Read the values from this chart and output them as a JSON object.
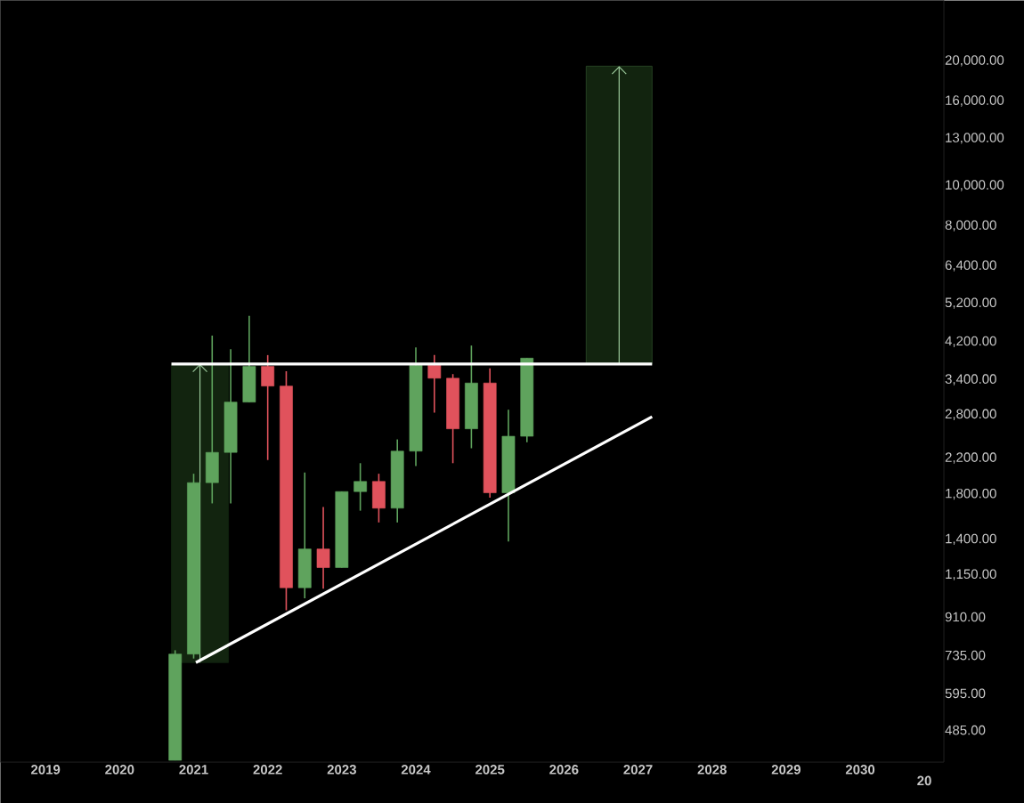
{
  "chart_data": {
    "type": "candlestick",
    "x": [
      2020.75,
      2021,
      2021.25,
      2021.5,
      2021.75,
      2022,
      2022.25,
      2022.5,
      2022.75,
      2023,
      2023.25,
      2023.5,
      2023.75,
      2024,
      2024.25,
      2024.5,
      2024.75,
      2025,
      2025.25,
      2025.5
    ],
    "ohlc": [
      [
        410,
        756,
        410,
        740
      ],
      [
        740,
        2016,
        722,
        1919
      ],
      [
        1919,
        4345,
        1710,
        2270
      ],
      [
        2270,
        4027,
        1710,
        3002
      ],
      [
        3002,
        4847,
        3002,
        3661
      ],
      [
        3661,
        3899,
        2176,
        3282
      ],
      [
        3282,
        3565,
        944,
        1070
      ],
      [
        1070,
        2030,
        1009,
        1327
      ],
      [
        1327,
        1675,
        1064,
        1197
      ],
      [
        1197,
        1826,
        1197,
        1826
      ],
      [
        1826,
        2138,
        1642,
        1932
      ],
      [
        1932,
        2016,
        1538,
        1665
      ],
      [
        1665,
        2440,
        1538,
        2286
      ],
      [
        2286,
        4069,
        2104,
        3686
      ],
      [
        3686,
        3899,
        2831,
        3428
      ],
      [
        3428,
        3508,
        2138,
        2588
      ],
      [
        2588,
        4111,
        2323,
        3338
      ],
      [
        3338,
        3622,
        1766,
        1814
      ],
      [
        1814,
        2877,
        1384,
        2483
      ],
      [
        2483,
        3833,
        2402,
        3833
      ]
    ],
    "colors": [
      "#5fa35d",
      "#5fa35d",
      "#5fa35d",
      "#5fa35d",
      "#5fa35d",
      "#e0525c",
      "#e0525c",
      "#5fa35d",
      "#e0525c",
      "#5fa35d",
      "#5fa35d",
      "#e0525c",
      "#5fa35d",
      "#5fa35d",
      "#e0525c",
      "#e0525c",
      "#5fa35d",
      "#e0525c",
      "#5fa35d",
      "#5fa35d"
    ],
    "series": [
      {
        "type": "line",
        "color": "#ffffff",
        "x": [
          2020.7,
          2027.19
        ],
        "values": [
          3711,
          3711
        ]
      },
      {
        "type": "line",
        "color": "#ffffff",
        "x": [
          2021.03,
          2027.19
        ],
        "values": [
          706,
          2767
        ]
      }
    ],
    "log": true,
    "xlim": [
      2018.39,
      2031.13
    ],
    "xticks": [
      2019,
      2020,
      2021,
      2022,
      2023,
      2024,
      2025,
      2026,
      2027,
      2028,
      2029,
      2030
    ],
    "annotations": [
      "20"
    ],
    "ylim": [
      406,
      28000
    ],
    "yticks": [
      {
        "value": 485,
        "label": "485.00"
      },
      {
        "value": 595,
        "label": "595.00"
      },
      {
        "value": 735,
        "label": "735.00"
      },
      {
        "value": 910,
        "label": "910.00"
      },
      {
        "value": 1150,
        "label": "1,150.00"
      },
      {
        "value": 1400,
        "label": "1,400.00"
      },
      {
        "value": 1800,
        "label": "1,800.00"
      },
      {
        "value": 2200,
        "label": "2,200.00"
      },
      {
        "value": 2800,
        "label": "2,800.00"
      },
      {
        "value": 3400,
        "label": "3,400.00"
      },
      {
        "value": 4200,
        "label": "4,200.00"
      },
      {
        "value": 5200,
        "label": "5,200.00"
      },
      {
        "value": 6400,
        "label": "6,400.00"
      },
      {
        "value": 8000,
        "label": "8,000.00"
      },
      {
        "value": 10000,
        "label": "10,000.00"
      },
      {
        "value": 13000,
        "label": "13,000.00"
      },
      {
        "value": 16000,
        "label": "16,000.00"
      },
      {
        "value": 20000,
        "label": "20,000.00"
      }
    ]
  }
}
